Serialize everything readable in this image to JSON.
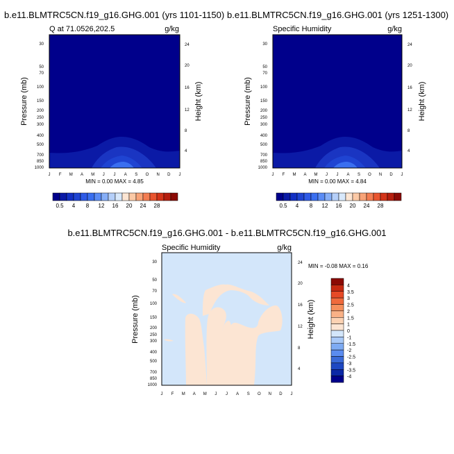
{
  "months": [
    "J",
    "F",
    "M",
    "A",
    "M",
    "J",
    "J",
    "A",
    "S",
    "O",
    "N",
    "D",
    "J"
  ],
  "colors": {
    "background": "#ffffff",
    "text": "#000000",
    "dark_navy": "#00008b",
    "deep_blue": "#0b1aa6",
    "mid_blue": "#1f44d2",
    "bright_blue": "#3a6ff0",
    "diff_blue": "#d3e6fa",
    "diff_peach": "#fce5d3"
  },
  "panels": [
    {
      "title": "b.e11.BLMTRC5CN.f19_g16.GHG.001 (yrs 1101-1150)",
      "left_label": "Q at 71.0526,202.5",
      "right_label": "g/kg",
      "ylabel": "Pressure (mb)",
      "y2label": "Height (km)",
      "pressure_ticks": [
        "30",
        "50",
        "70",
        "100",
        "150",
        "200",
        "250",
        "300",
        "400",
        "500",
        "700",
        "850",
        "1000"
      ],
      "height_ticks": [
        "24",
        "20",
        "16",
        "12",
        "8",
        "4"
      ],
      "stats": "MIN =   0.00 MAX =   4.85"
    },
    {
      "title": "b.e11.BLMTRC5CN.f19_g16.GHG.001 (yrs 1251-1300)",
      "left_label": "Specific Humidity",
      "right_label": "g/kg",
      "ylabel": "Pressure (mb)",
      "y2label": "Height (km)",
      "pressure_ticks": [
        "30",
        "50",
        "70",
        "100",
        "150",
        "200",
        "250",
        "300",
        "400",
        "500",
        "700",
        "850",
        "1000"
      ],
      "height_ticks": [
        "24",
        "20",
        "16",
        "12",
        "8",
        "4"
      ],
      "stats": "MIN =   0.00 MAX =   4.84"
    },
    {
      "title": "b.e11.BLMTRC5CN.f19_g16.GHG.001 - b.e11.BLMTRC5CN.f19_g16.GHG.001",
      "left_label": "Specific Humidity",
      "right_label": "g/kg",
      "ylabel": "Pressure (mb)",
      "y2label": "Height (km)",
      "pressure_ticks": [
        "30",
        "50",
        "70",
        "100",
        "150",
        "200",
        "250",
        "300",
        "400",
        "500",
        "700",
        "850",
        "1000"
      ],
      "height_ticks": [
        "24",
        "20",
        "16",
        "12",
        "8",
        "4"
      ],
      "stats": "MIN =  -0.08 MAX =   0.16"
    }
  ],
  "colorbar_abs": {
    "labels": [
      "0.5",
      "4",
      "8",
      "12",
      "16",
      "20",
      "24",
      "28"
    ],
    "colors": [
      "#00008b",
      "#0b1aa6",
      "#1330c4",
      "#1f44d2",
      "#2e5ae6",
      "#3a6ff0",
      "#5b8cf5",
      "#86aef7",
      "#b5cff9",
      "#d8e8fb",
      "#fce5d3",
      "#fbc9a6",
      "#f8a378",
      "#f37d52",
      "#e9552f",
      "#d33419",
      "#b51e0e",
      "#8b0a05"
    ]
  },
  "colorbar_diff": {
    "labels": [
      "4",
      "3.5",
      "3",
      "2.5",
      "2",
      "1.5",
      "1",
      "0",
      "-1",
      "-1.5",
      "-2",
      "-2.5",
      "-3",
      "-3.5",
      "-4"
    ],
    "colors": [
      "#8b0a05",
      "#c62a12",
      "#e64a26",
      "#f06a3c",
      "#f6905d",
      "#f9b186",
      "#fcd2b3",
      "#fce5d3",
      "#d3e6fa",
      "#a9c9f7",
      "#7eabf3",
      "#5b8cf0",
      "#3a6ad8",
      "#1e48c2",
      "#0b28a6",
      "#00008b"
    ]
  },
  "chart_data": [
    {
      "type": "heatmap",
      "title": "b.e11.BLMTRC5CN.f19_g16.GHG.001 (yrs 1101-1150)",
      "variable": "Q at 71.0526,202.5",
      "units": "g/kg",
      "x": [
        "J",
        "F",
        "M",
        "A",
        "M",
        "J",
        "J",
        "A",
        "S",
        "O",
        "N",
        "D",
        "J"
      ],
      "ylabel": "Pressure (mb)",
      "y2label": "Height (km)",
      "ylim": [
        1000,
        30
      ],
      "y_scale": "log",
      "min": 0.0,
      "max": 4.85
    },
    {
      "type": "heatmap",
      "title": "b.e11.BLMTRC5CN.f19_g16.GHG.001 (yrs 1251-1300)",
      "variable": "Specific Humidity",
      "units": "g/kg",
      "x": [
        "J",
        "F",
        "M",
        "A",
        "M",
        "J",
        "J",
        "A",
        "S",
        "O",
        "N",
        "D",
        "J"
      ],
      "ylabel": "Pressure (mb)",
      "y2label": "Height (km)",
      "ylim": [
        1000,
        30
      ],
      "y_scale": "log",
      "min": 0.0,
      "max": 4.84
    },
    {
      "type": "heatmap",
      "title": "b.e11.BLMTRC5CN.f19_g16.GHG.001 - b.e11.BLMTRC5CN.f19_g16.GHG.001",
      "variable": "Specific Humidity",
      "units": "g/kg",
      "x": [
        "J",
        "F",
        "M",
        "A",
        "M",
        "J",
        "J",
        "A",
        "S",
        "O",
        "N",
        "D",
        "J"
      ],
      "ylabel": "Pressure (mb)",
      "y2label": "Height (km)",
      "ylim": [
        1000,
        30
      ],
      "y_scale": "log",
      "min": -0.08,
      "max": 0.16
    }
  ]
}
